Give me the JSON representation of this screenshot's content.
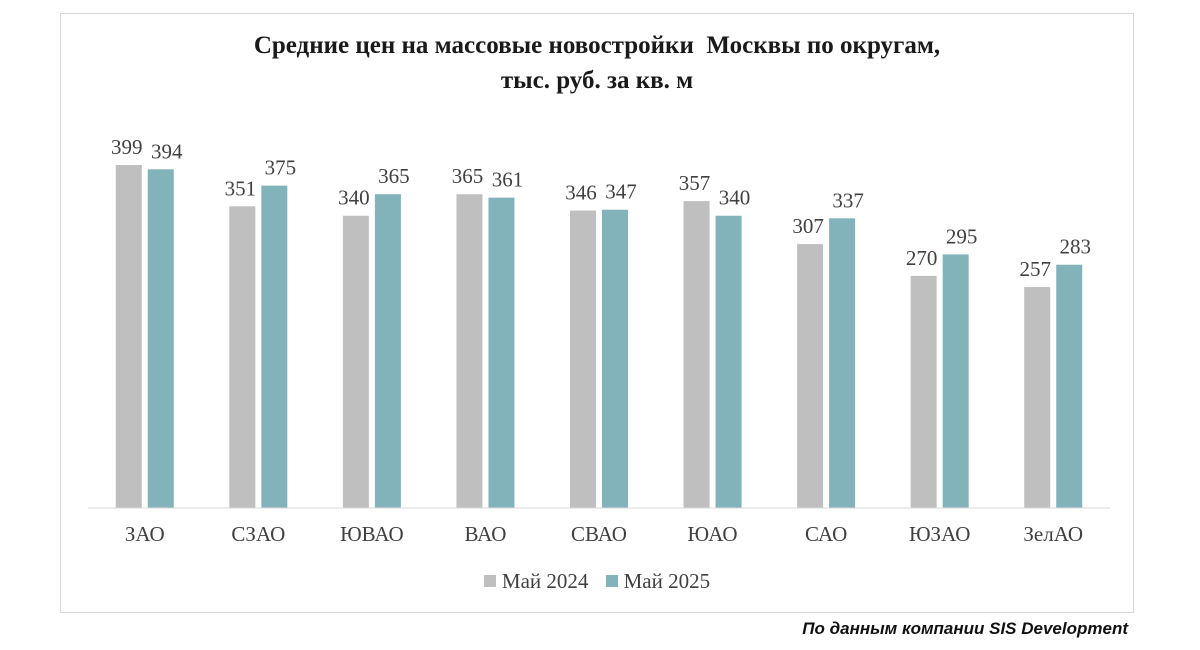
{
  "chart_data": {
    "type": "bar",
    "title": [
      "Средние цен на массовые новостройки  Москвы по округам,",
      "тыс. руб. за кв. м"
    ],
    "categories": [
      "ЗАО",
      "СЗАО",
      "ЮВАО",
      "ВАО",
      "СВАО",
      "ЮАО",
      "САО",
      "ЮЗАО",
      "ЗелАО"
    ],
    "series": [
      {
        "name": "Май 2024",
        "color": "#bfbfbf",
        "values": [
          399,
          351,
          340,
          365,
          346,
          357,
          307,
          270,
          257
        ]
      },
      {
        "name": "Май 2025",
        "color": "#82b3ba",
        "values": [
          394,
          375,
          365,
          361,
          347,
          340,
          337,
          295,
          283
        ]
      }
    ],
    "ylim": [
      0,
      440
    ],
    "grid": false,
    "legend_position": "bottom",
    "data_labels": true
  },
  "source": "По данным компании SIS Development"
}
